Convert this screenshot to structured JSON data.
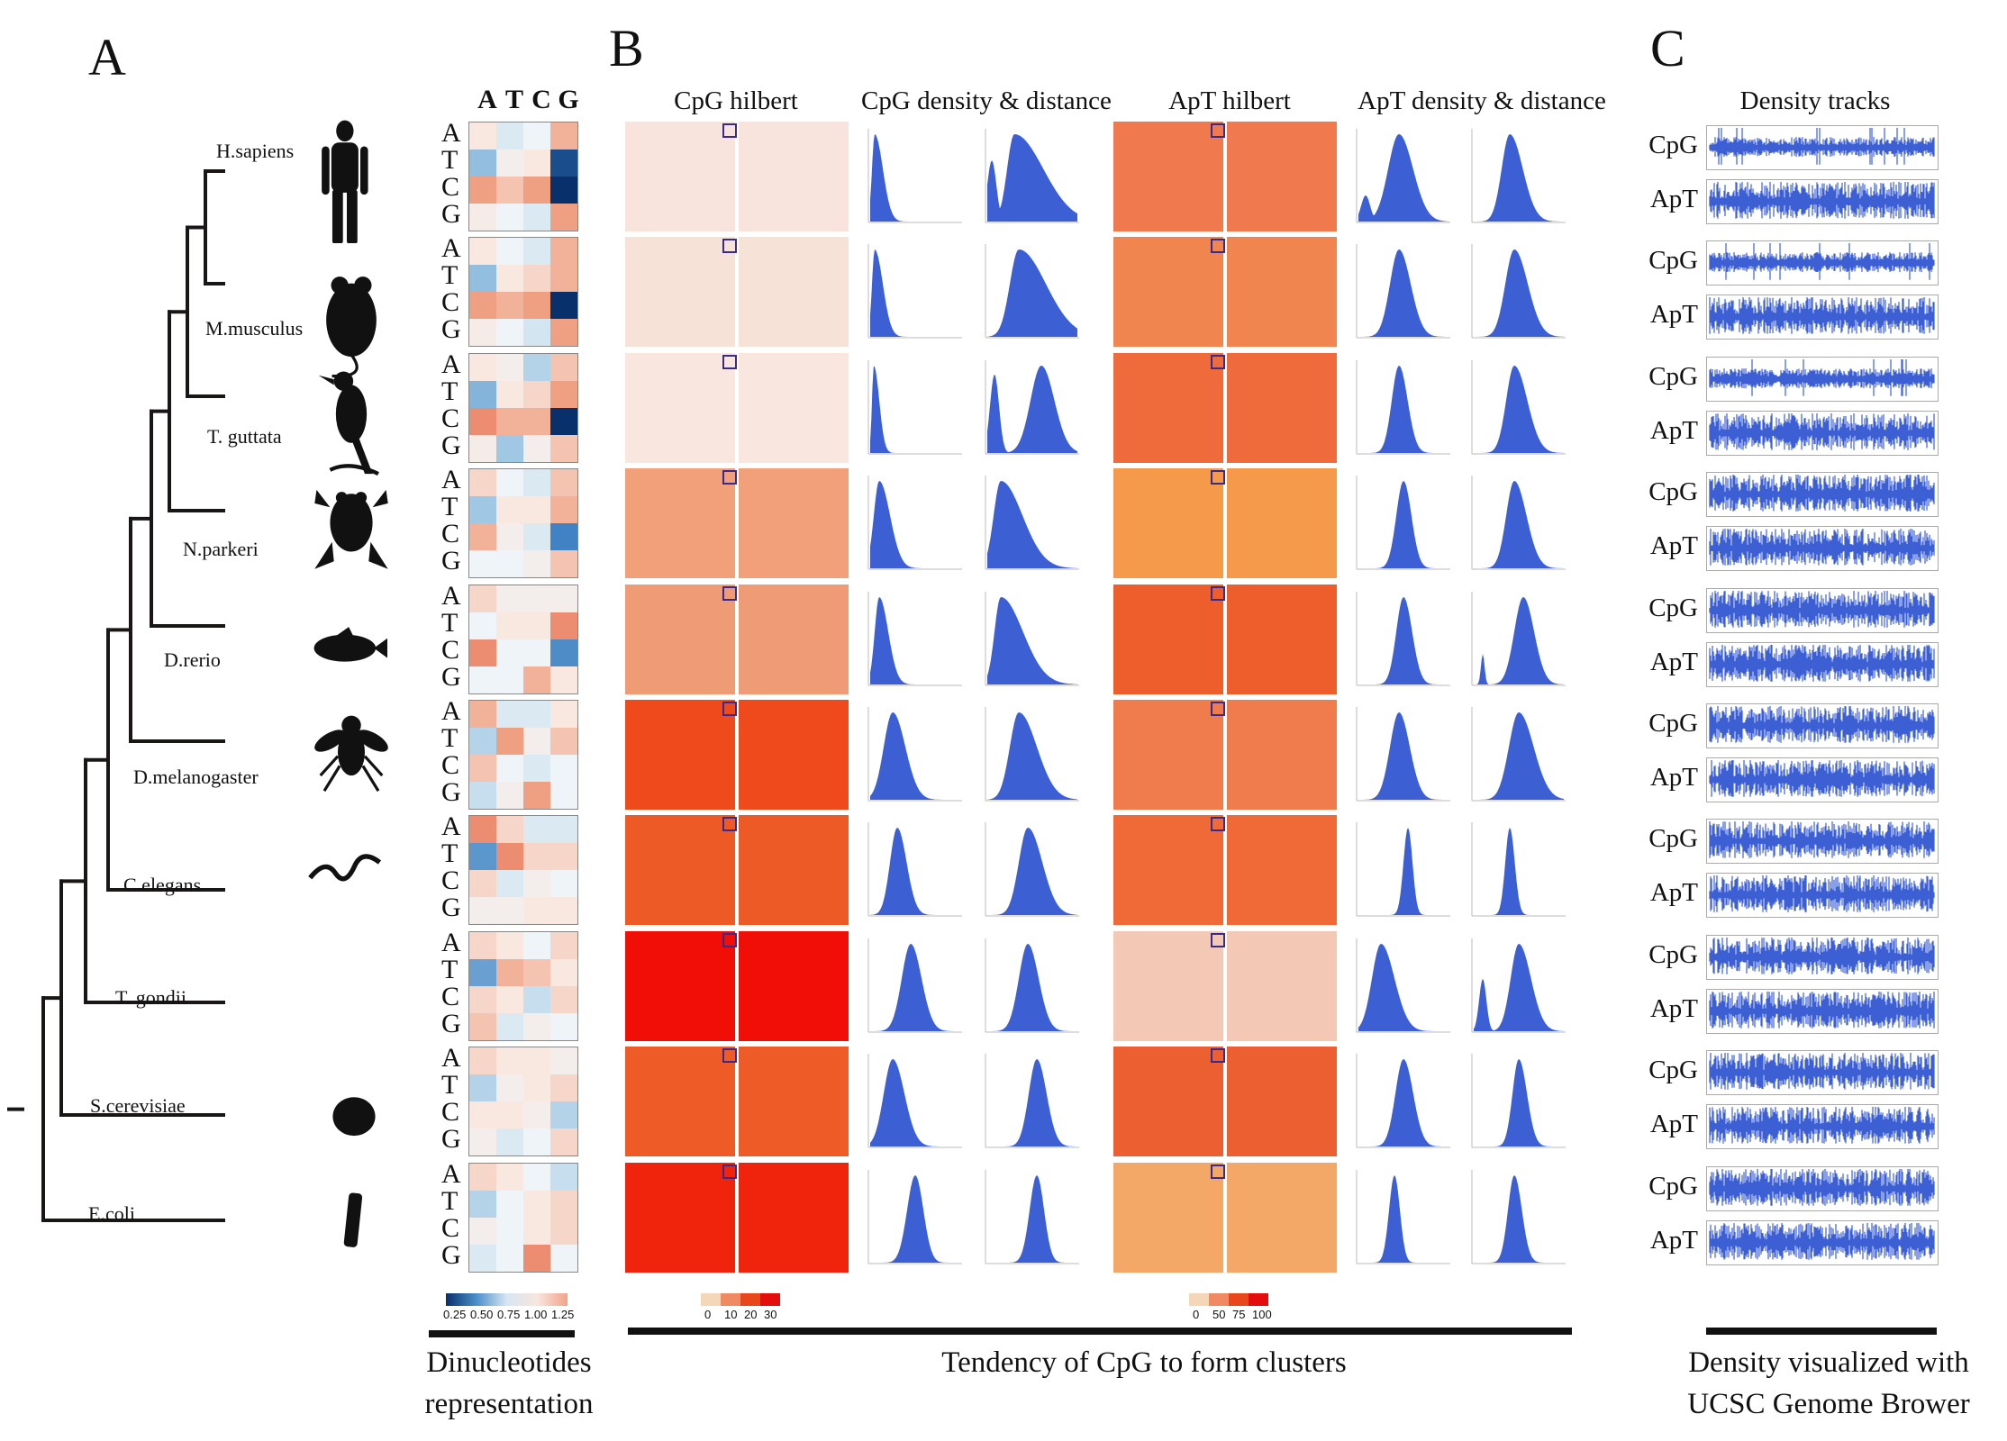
{
  "panels": {
    "a": "A",
    "b": "B",
    "c": "C"
  },
  "heatmap_header": [
    "A",
    "T",
    "C",
    "G"
  ],
  "row_letters": [
    "A",
    "T",
    "C",
    "G"
  ],
  "species": [
    {
      "name": "H.sapiens",
      "icon": "human-silhouette-icon"
    },
    {
      "name": "M.musculus",
      "icon": "mouse-silhouette-icon"
    },
    {
      "name": "T. guttata",
      "icon": "bird-silhouette-icon"
    },
    {
      "name": "N.parkeri",
      "icon": "frog-silhouette-icon"
    },
    {
      "name": "D.rerio",
      "icon": "fish-silhouette-icon"
    },
    {
      "name": "D.melanogaster",
      "icon": "fly-silhouette-icon"
    },
    {
      "name": "C.elegans",
      "icon": "worm-silhouette-icon"
    },
    {
      "name": "T. gondii",
      "icon": "crescent-silhouette-icon"
    },
    {
      "name": "S.cerevisiae",
      "icon": "yeast-dot-icon"
    },
    {
      "name": "E.coli",
      "icon": "rod-bacterium-icon"
    }
  ],
  "heatmaps": [
    [
      [
        1.05,
        0.9,
        0.95,
        1.2
      ],
      [
        0.7,
        1.0,
        1.05,
        0.2
      ],
      [
        1.25,
        1.15,
        1.25,
        0.1
      ],
      [
        1.02,
        0.95,
        0.9,
        1.25
      ]
    ],
    [
      [
        1.05,
        0.95,
        0.9,
        1.2
      ],
      [
        0.7,
        1.05,
        1.1,
        1.2
      ],
      [
        1.25,
        1.2,
        1.25,
        0.05
      ],
      [
        1.02,
        0.95,
        0.88,
        1.25
      ]
    ],
    [
      [
        1.05,
        1.0,
        0.8,
        1.15
      ],
      [
        0.65,
        1.05,
        1.1,
        1.25
      ],
      [
        1.3,
        1.2,
        1.2,
        0.05
      ],
      [
        1.02,
        0.75,
        1.0,
        1.15
      ]
    ],
    [
      [
        1.1,
        0.95,
        0.9,
        1.15
      ],
      [
        0.75,
        1.05,
        1.05,
        1.2
      ],
      [
        1.2,
        1.0,
        0.9,
        0.4
      ],
      [
        0.95,
        0.95,
        1.0,
        1.15
      ]
    ],
    [
      [
        1.1,
        1.0,
        1.0,
        1.0
      ],
      [
        0.95,
        1.05,
        1.05,
        1.3
      ],
      [
        1.3,
        0.95,
        0.95,
        0.45
      ],
      [
        0.95,
        0.95,
        1.2,
        1.05
      ]
    ],
    [
      [
        1.2,
        0.9,
        0.9,
        1.05
      ],
      [
        0.8,
        1.25,
        1.0,
        1.15
      ],
      [
        1.15,
        0.95,
        0.9,
        0.95
      ],
      [
        0.85,
        1.0,
        1.25,
        0.95
      ]
    ],
    [
      [
        1.3,
        1.1,
        0.9,
        0.9
      ],
      [
        0.5,
        1.3,
        1.1,
        1.1
      ],
      [
        1.1,
        0.9,
        1.0,
        0.95
      ],
      [
        1.0,
        1.0,
        1.05,
        1.05
      ]
    ],
    [
      [
        1.1,
        1.05,
        0.95,
        1.1
      ],
      [
        0.55,
        1.2,
        1.15,
        1.05
      ],
      [
        1.1,
        1.05,
        0.85,
        1.1
      ],
      [
        1.15,
        0.9,
        1.0,
        0.95
      ]
    ],
    [
      [
        1.1,
        1.05,
        1.05,
        1.0
      ],
      [
        0.8,
        1.0,
        1.05,
        1.1
      ],
      [
        1.05,
        1.05,
        1.0,
        0.8
      ],
      [
        1.0,
        0.9,
        0.95,
        1.1
      ]
    ],
    [
      [
        1.1,
        1.05,
        0.95,
        0.85
      ],
      [
        0.8,
        0.95,
        1.05,
        1.1
      ],
      [
        1.0,
        0.95,
        1.05,
        1.1
      ],
      [
        0.9,
        0.95,
        1.3,
        0.95
      ]
    ]
  ],
  "heatmap_legend": {
    "ticks": [
      "0.25",
      "0.50",
      "0.75",
      "1.00",
      "1.25"
    ],
    "colors": [
      "#08306b",
      "#4a90c8",
      "#d6e6f2",
      "#f7e6e0",
      "#f2a488"
    ]
  },
  "panel_b_headers": [
    "CpG hilbert",
    "CpG density & distance",
    "ApT hilbert",
    "ApT density & distance"
  ],
  "cpg_legend": {
    "ticks": [
      "0",
      "10",
      "20",
      "30"
    ],
    "colors": [
      "#f3d7b7",
      "#ef8a62",
      "#e8461b",
      "#e40d0d"
    ]
  },
  "apt_legend": {
    "ticks": [
      "0",
      "50",
      "75",
      "100"
    ],
    "colors": [
      "#f3d7b7",
      "#ef8a62",
      "#e8461b",
      "#e40d0d"
    ]
  },
  "hilbert_colors": {
    "cpg": [
      "#f8e4dc",
      "#f7e2d8",
      "#f8e6df",
      "#f2a07a",
      "#ef9c76",
      "#ee4a1c",
      "#ee5a25",
      "#f00e07",
      "#ef5b26",
      "#f0240d"
    ],
    "apt": [
      "#f07a4e",
      "#f0854f",
      "#ef6b3c",
      "#f59a4a",
      "#ee5e2c",
      "#f07c4d",
      "#ef6a36",
      "#f3c8b4",
      "#ec5f31",
      "#f3a868"
    ]
  },
  "density_color": "#3c60d4",
  "caption_b": "Tendency of CpG to form clusters",
  "caption_a": [
    "Dinucleotides",
    "representation"
  ],
  "panel_c_header": "Density tracks",
  "track_labels": [
    "CpG",
    "ApT"
  ],
  "caption_c": [
    "Density visualized with",
    "UCSC Genome Brower"
  ]
}
